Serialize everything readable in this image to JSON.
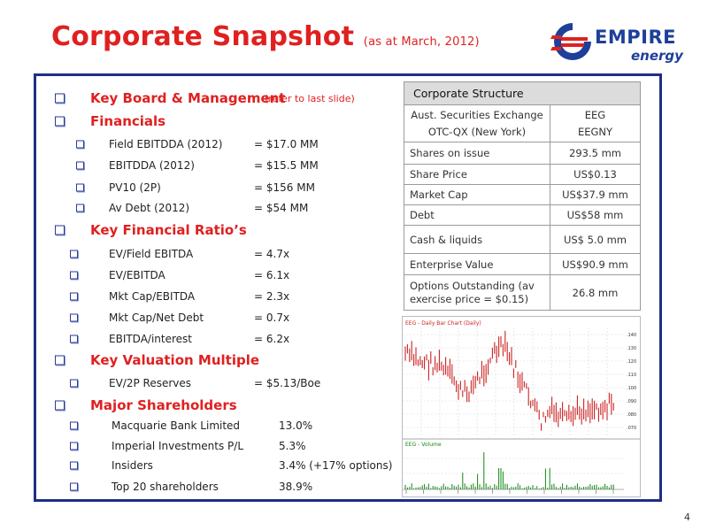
{
  "title": {
    "main": "Corporate Snapshot",
    "sub": "(as at March, 2012)"
  },
  "logo": {
    "line1": "EMPIRE",
    "line2": "energy",
    "colors": {
      "blue": "#1e3f9a",
      "red": "#e02020"
    }
  },
  "sections": [
    {
      "label": "Key Board & Management",
      "note": "(refer to last slide)",
      "items": []
    },
    {
      "label": "Financials",
      "note": "",
      "items": [
        {
          "label": "Field EBITDDA (2012)",
          "value": "= $17.0 MM"
        },
        {
          "label": "EBITDDA (2012)",
          "value": "= $15.5 MM"
        },
        {
          "label": "PV10 (2P)",
          "value": "= $156 MM"
        },
        {
          "label": "Av Debt (2012)",
          "value": "= $54 MM"
        }
      ]
    },
    {
      "label": "Key Financial Ratio’s",
      "note": "",
      "items": [
        {
          "label": "EV/Field EBITDA",
          "value": "= 4.7x"
        },
        {
          "label": "EV/EBITDA",
          "value": "= 6.1x"
        },
        {
          "label": "Mkt Cap/EBITDA",
          "value": "= 2.3x"
        },
        {
          "label": "Mkt Cap/Net Debt",
          "value": "= 0.7x"
        },
        {
          "label": "EBITDA/interest",
          "value": "= 6.2x"
        }
      ]
    },
    {
      "label": "Key Valuation Multiple",
      "note": "",
      "items": [
        {
          "label": "EV/2P Reserves",
          "value": "= $5.13/Boe"
        }
      ]
    },
    {
      "label": "Major Shareholders",
      "note": "",
      "items": [
        {
          "label": "Macquarie Bank Limited",
          "value": "13.0%"
        },
        {
          "label": "Imperial Investments P/L",
          "value": "5.3%"
        },
        {
          "label": "Insiders",
          "value": "3.4% (+17% options)"
        },
        {
          "label": "Top 20 shareholders",
          "value": "38.9%"
        }
      ]
    }
  ],
  "table": {
    "header": "Corporate Structure",
    "rows": [
      {
        "label": "Aust. Securities Exchange",
        "label2": "OTC-QX (New York)",
        "value": "EEG",
        "value2": "EEGNY"
      },
      {
        "label": "Shares on issue",
        "value": "293.5 mm"
      },
      {
        "label": "Share Price",
        "value": "US$0.13"
      },
      {
        "label": "Market Cap",
        "value": "US$37.9 mm"
      },
      {
        "label": "Debt",
        "value": "US$58 mm"
      },
      {
        "label": "Cash & liquids",
        "value": "US$ 5.0 mm"
      },
      {
        "label": "Enterprise Value",
        "value": "US$90.9 mm"
      },
      {
        "label": "Options Outstanding (av exercise price = $0.15)",
        "value": "26.8 mm"
      }
    ]
  },
  "chart": {
    "price_title": "EEG - Daily Bar Chart (Daily)",
    "volume_title": "EEG - Volume",
    "price_color": "#cc2222",
    "volume_color": "#118811"
  },
  "page_number": "4"
}
